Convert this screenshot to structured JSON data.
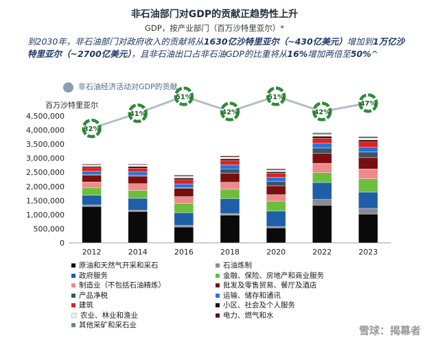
{
  "header": {
    "title": "非石油部门对GDP的贡献正趋势性上升",
    "subtitle": "GDP，按产业部门（百万沙特里亚尔）*"
  },
  "intro": {
    "part1": "到2030年，非石油部门对政府收入的贡献将从",
    "bold1": "1630亿沙特里亚尔（~430亿美元）",
    "part2": "增加到",
    "bold2": "1万亿沙特里亚尔（~2700亿美元）",
    "part3": "，且非石油出口占非石油GDP的比重将从",
    "bold3": "16%",
    "part4": "增加两倍至",
    "bold4": "50%",
    "tail": "^"
  },
  "top_legend": {
    "label": "非石油经济活动对GDP的贡献"
  },
  "unit_label": "百万沙特里亚尔",
  "watermark": "雪球：揭幕者",
  "colors": {
    "line": "#b0bec8",
    "marker": "#2e8b3a",
    "axis": "#999999"
  },
  "chart_data": {
    "type": "bar",
    "stacked": true,
    "categories": [
      "2012",
      "2014",
      "2016",
      "2018",
      "2020",
      "2022",
      "2023"
    ],
    "ylim": [
      0,
      4500000
    ],
    "yticks": [
      0,
      500000,
      1000000,
      1500000,
      2000000,
      2500000,
      3000000,
      3500000,
      4000000,
      4500000
    ],
    "ytick_labels": [
      "0",
      "500,000",
      "1,000,000",
      "1,500,000",
      "2,000,000",
      "2,500,000",
      "3,000,000",
      "3,500,000",
      "4,000,000",
      "4,500,000"
    ],
    "series": [
      {
        "name": "原油和天然气开采和采石",
        "color": "#0a0a0a",
        "values": [
          1290000,
          1110000,
          560000,
          980000,
          530000,
          1330000,
          1020000
        ]
      },
      {
        "name": "石油炼制",
        "color": "#8c8c8c",
        "values": [
          50000,
          50000,
          60000,
          60000,
          50000,
          210000,
          200000
        ]
      },
      {
        "name": "政府服务",
        "color": "#1f5fa8",
        "values": [
          350000,
          420000,
          450000,
          530000,
          550000,
          600000,
          580000
        ]
      },
      {
        "name": "金融、保险、房地产和商业服务",
        "color": "#6cbf3c",
        "values": [
          260000,
          280000,
          330000,
          330000,
          350000,
          350000,
          470000
        ]
      },
      {
        "name": "制造业（不包括石油精炼）",
        "color": "#ef8a8a",
        "values": [
          210000,
          240000,
          240000,
          250000,
          230000,
          330000,
          350000
        ]
      },
      {
        "name": "批发及零售贸易、餐厅及酒店",
        "color": "#7a0f0f",
        "values": [
          240000,
          260000,
          290000,
          320000,
          310000,
          350000,
          400000
        ]
      },
      {
        "name": "产品净税",
        "color": "#3b5566",
        "values": [
          30000,
          30000,
          30000,
          150000,
          160000,
          190000,
          200000
        ]
      },
      {
        "name": "运输、储存和通讯",
        "color": "#2a72d8",
        "values": [
          110000,
          120000,
          130000,
          150000,
          140000,
          170000,
          170000
        ]
      },
      {
        "name": "建筑",
        "color": "#e02020",
        "values": [
          120000,
          140000,
          150000,
          150000,
          150000,
          180000,
          190000
        ]
      },
      {
        "name": "小区、社会及个人服务",
        "color": "#111111",
        "values": [
          50000,
          60000,
          60000,
          60000,
          50000,
          70000,
          70000
        ]
      },
      {
        "name": "农业、林业和渔业",
        "color": "#f0f0f0",
        "values": [
          50000,
          55000,
          60000,
          60000,
          60000,
          70000,
          70000
        ]
      },
      {
        "name": "电力、燃气和水",
        "color": "#5a1010",
        "values": [
          30000,
          30000,
          40000,
          40000,
          40000,
          40000,
          40000
        ]
      },
      {
        "name": "其他采矿和采石业",
        "color": "#5b8aa0",
        "values": [
          10000,
          10000,
          10000,
          15000,
          15000,
          20000,
          20000
        ]
      }
    ],
    "non_oil_share": {
      "values": [
        32,
        41,
        51,
        42,
        51,
        42,
        47
      ],
      "labels": [
        "32%",
        "41%",
        "51%",
        "42%",
        "51%",
        "42%",
        "47%"
      ]
    }
  }
}
